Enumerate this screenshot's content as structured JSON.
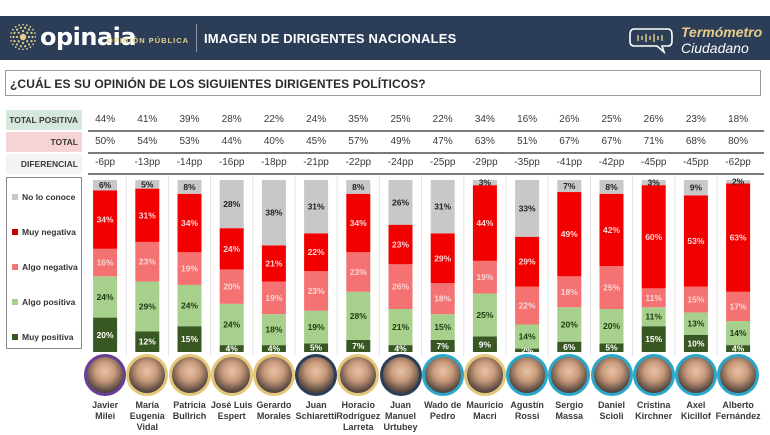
{
  "header": {
    "brand": "opinaia",
    "brand_sub": "OPINIÓN PÚBLICA",
    "title": "IMAGEN DE DIRIGENTES NACIONALES",
    "badge_line1": "Termómetro",
    "badge_line2": "Ciudadano"
  },
  "question": "¿CUÁL ES SU OPINIÓN DE LOS SIGUIENTES DIRIGENTES POLÍTICOS?",
  "rows": {
    "positive_label": "TOTAL POSITIVA",
    "negative_label": "TOTAL NEGATIVA",
    "diff_label": "DIFERENCIAL"
  },
  "colors": {
    "header_bg": "#2c3e57",
    "accent_gold": "#e7cf8a",
    "no_lo_conoce": "#c8c8c8",
    "muy_negativa": "#f20000",
    "algo_negativa": "#f47272",
    "algo_positiva": "#a8d08d",
    "muy_positiva": "#385723"
  },
  "chart_data": {
    "type": "bar",
    "stacked": true,
    "title": "¿Cuál es su opinión de los siguientes dirigentes políticos?",
    "categories": [
      "Javier Milei",
      "María Eugenia Vidal",
      "Patricia Bullrich",
      "José Luis Espert",
      "Gerardo Morales",
      "Juan Schiaretti",
      "Horacio Rodríguez Larreta",
      "Juan Manuel Urtubey",
      "Wado de Pedro",
      "Mauricio Macri",
      "Agustín Rossi",
      "Sergio Massa",
      "Daniel Scioli",
      "Cristina Kirchner",
      "Axel Kicillof",
      "Alberto Fernández"
    ],
    "name_lines": [
      [
        "Javier",
        "Milei"
      ],
      [
        "María",
        "Eugenia",
        "Vidal"
      ],
      [
        "Patricia",
        "Bullrich"
      ],
      [
        "José Luis",
        "Espert"
      ],
      [
        "Gerardo",
        "Morales"
      ],
      [
        "Juan",
        "Schiaretti"
      ],
      [
        "Horacio",
        "Rodríguez",
        "Larreta"
      ],
      [
        "Juan",
        "Manuel",
        "Urtubey"
      ],
      [
        "Wado de",
        "Pedro"
      ],
      [
        "Mauricio",
        "Macri"
      ],
      [
        "Agustín",
        "Rossi"
      ],
      [
        "Sergio",
        "Massa"
      ],
      [
        "Daniel",
        "Scioli"
      ],
      [
        "Cristina",
        "Kirchner"
      ],
      [
        "Axel",
        "Kicillof"
      ],
      [
        "Alberto",
        "Fernández"
      ]
    ],
    "avatar_ring": [
      "purple",
      "gold",
      "gold",
      "gold",
      "gold",
      "navy",
      "gold",
      "navy",
      "teal",
      "gold",
      "teal",
      "teal",
      "teal",
      "teal",
      "teal",
      "teal"
    ],
    "total_positiva": [
      "44%",
      "41%",
      "39%",
      "28%",
      "22%",
      "24%",
      "35%",
      "25%",
      "22%",
      "34%",
      "16%",
      "26%",
      "25%",
      "26%",
      "23%",
      "18%"
    ],
    "total_negativa": [
      "50%",
      "54%",
      "53%",
      "44%",
      "40%",
      "45%",
      "57%",
      "49%",
      "47%",
      "63%",
      "51%",
      "67%",
      "67%",
      "71%",
      "68%",
      "80%"
    ],
    "diferencial": [
      "-6pp",
      "-13pp",
      "-14pp",
      "-16pp",
      "-18pp",
      "-21pp",
      "-22pp",
      "-24pp",
      "-25pp",
      "-29pp",
      "-35pp",
      "-41pp",
      "-42pp",
      "-45pp",
      "-45pp",
      "-62pp"
    ],
    "series": [
      {
        "name": "Muy positiva",
        "values": [
          20,
          12,
          15,
          4,
          4,
          5,
          7,
          4,
          7,
          9,
          2,
          6,
          5,
          15,
          10,
          4
        ]
      },
      {
        "name": "Algo positiva",
        "values": [
          24,
          29,
          24,
          24,
          18,
          19,
          28,
          21,
          15,
          25,
          14,
          20,
          20,
          11,
          13,
          14
        ]
      },
      {
        "name": "Algo negativa",
        "values": [
          16,
          23,
          19,
          20,
          19,
          23,
          23,
          26,
          18,
          19,
          22,
          18,
          25,
          11,
          15,
          17
        ]
      },
      {
        "name": "Muy negativa",
        "values": [
          34,
          31,
          34,
          24,
          21,
          22,
          34,
          23,
          29,
          44,
          29,
          49,
          42,
          60,
          53,
          63
        ]
      },
      {
        "name": "No lo conoce",
        "values": [
          6,
          5,
          8,
          28,
          38,
          31,
          8,
          26,
          31,
          3,
          33,
          7,
          8,
          3,
          9,
          2
        ]
      }
    ],
    "legend": [
      "No lo conoce",
      "Muy negativa",
      "Algo negativa",
      "Algo positiva",
      "Muy positiva"
    ],
    "legend_position": "left",
    "ylim": [
      0,
      100
    ],
    "xlabel": "",
    "ylabel": ""
  }
}
